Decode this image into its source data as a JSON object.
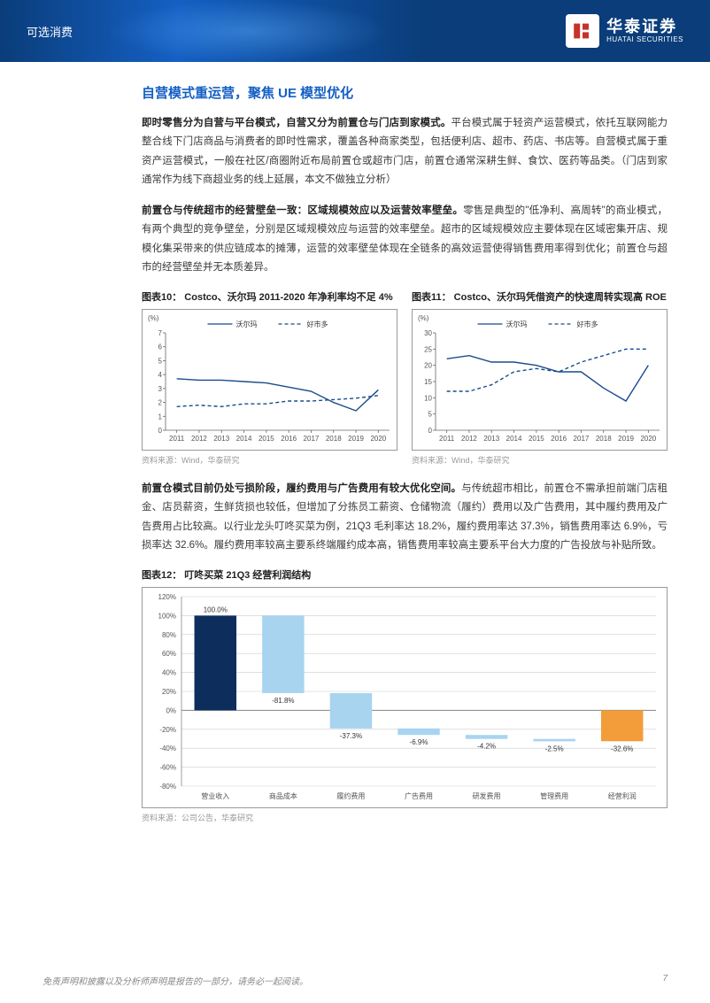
{
  "header": {
    "category": "可选消费",
    "company_cn": "华泰证券",
    "company_en": "HUATAI SECURITIES"
  },
  "section_title": "自营模式重运营，聚焦 UE 模型优化",
  "para1_bold": "即时零售分为自营与平台模式，自营又分为前置仓与门店到家模式。",
  "para1_rest": "平台模式属于轻资产运营模式，依托互联网能力整合线下门店商品与消费者的即时性需求，覆盖各种商家类型，包括便利店、超市、药店、书店等。自营模式属于重资产运营模式，一般在社区/商圈附近布局前置仓或超市门店，前置仓通常深耕生鲜、食饮、医药等品类。（门店到家通常作为线下商超业务的线上延展，本文不做独立分析）",
  "para2_bold": "前置仓与传统超市的经营壁垒一致：区域规模效应以及运营效率壁垒。",
  "para2_rest": "零售是典型的\"低净利、高周转\"的商业模式，有两个典型的竞争壁垒，分别是区域规模效应与运营的效率壁垒。超市的区域规模效应主要体现在区域密集开店、规模化集采带来的供应链成本的摊薄，运营的效率壁垒体现在全链条的高效运营使得销售费用率得到优化；前置仓与超市的经营壁垒并无本质差异。",
  "chart10": {
    "title": "图表10：  Costco、沃尔玛 2011-2020 年净利率均不足 4%",
    "source": "资料来源：Wind，华泰研究",
    "ylabel": "(%)",
    "years": [
      "2011",
      "2012",
      "2013",
      "2014",
      "2015",
      "2016",
      "2017",
      "2018",
      "2019",
      "2020"
    ],
    "ylim": [
      0,
      7
    ],
    "ytick_step": 1,
    "series": [
      {
        "name": "沃尔玛",
        "color": "#1a4b8c",
        "dash": "none",
        "values": [
          3.7,
          3.6,
          3.6,
          3.5,
          3.4,
          3.1,
          2.8,
          2.0,
          1.4,
          2.9
        ]
      },
      {
        "name": "好市多",
        "color": "#1a4b8c",
        "dash": "4 3",
        "values": [
          1.7,
          1.8,
          1.7,
          1.9,
          1.9,
          2.1,
          2.1,
          2.2,
          2.3,
          2.5
        ]
      }
    ],
    "chart_bg": "#ffffff",
    "border_color": "#999999"
  },
  "chart11": {
    "title": "图表11：  Costco、沃尔玛凭借资产的快速周转实现高 ROE",
    "source": "资料来源：Wind，华泰研究",
    "ylabel": "(%)",
    "years": [
      "2011",
      "2012",
      "2013",
      "2014",
      "2015",
      "2016",
      "2017",
      "2018",
      "2019",
      "2020"
    ],
    "ylim": [
      0,
      30
    ],
    "ytick_step": 5,
    "series": [
      {
        "name": "沃尔玛",
        "color": "#1a4b8c",
        "dash": "none",
        "values": [
          22,
          23,
          21,
          21,
          20,
          18,
          18,
          13,
          9,
          20
        ]
      },
      {
        "name": "好市多",
        "color": "#1a4b8c",
        "dash": "4 3",
        "values": [
          12,
          12,
          14,
          18,
          19,
          18,
          21,
          23,
          25,
          25
        ]
      }
    ],
    "chart_bg": "#ffffff",
    "border_color": "#999999"
  },
  "para3_bold": "前置仓模式目前仍处亏损阶段，履约费用与广告费用有较大优化空间。",
  "para3_rest": "与传统超市相比，前置仓不需承担前端门店租金、店员薪资，生鲜货损也较低，但增加了分拣员工薪资、仓储物流（履约）费用以及广告费用，其中履约费用及广告费用占比较高。以行业龙头叮咚买菜为例，21Q3 毛利率达 18.2%，履约费用率达 37.3%，销售费用率达 6.9%，亏损率达 32.6%。履约费用率较高主要系终端履约成本高，销售费用率较高主要系平台大力度的广告投放与补贴所致。",
  "chart12": {
    "title": "图表12：  叮咚买菜 21Q3 经营利润结构",
    "source": "资料来源：公司公告，华泰研究",
    "yticks": [
      -80,
      -60,
      -40,
      -20,
      0,
      20,
      40,
      60,
      80,
      100,
      120
    ],
    "yformat": "%",
    "grid_color": "#cccccc",
    "categories": [
      "营业收入",
      "商品成本",
      "履约费用",
      "广告费用",
      "研发费用",
      "管理费用",
      "经营利润"
    ],
    "bars": [
      {
        "label": "100.0%",
        "start": 0,
        "end": 100,
        "color": "#0d2e5c",
        "label_pos": "top"
      },
      {
        "label": "-81.8%",
        "start": 18.2,
        "end": 100,
        "color": "#a8d4f0",
        "label_pos": "bottom"
      },
      {
        "label": "-37.3%",
        "start": -19.1,
        "end": 18.2,
        "color": "#a8d4f0",
        "label_pos": "bottom"
      },
      {
        "label": "-6.9%",
        "start": -26.0,
        "end": -19.1,
        "color": "#a8d4f0",
        "label_pos": "bottom"
      },
      {
        "label": "-4.2%",
        "start": -30.2,
        "end": -26.0,
        "color": "#a8d4f0",
        "label_pos": "bottom"
      },
      {
        "label": "-2.5%",
        "start": -32.7,
        "end": -30.2,
        "color": "#a8d4f0",
        "label_pos": "bottom"
      },
      {
        "label": "-32.6%",
        "start": -32.6,
        "end": 0,
        "color": "#f39c3a",
        "label_pos": "bottom"
      }
    ]
  },
  "footer": {
    "disclaimer": "免责声明和披露以及分析师声明是报告的一部分，请务必一起阅读。",
    "page": "7"
  }
}
